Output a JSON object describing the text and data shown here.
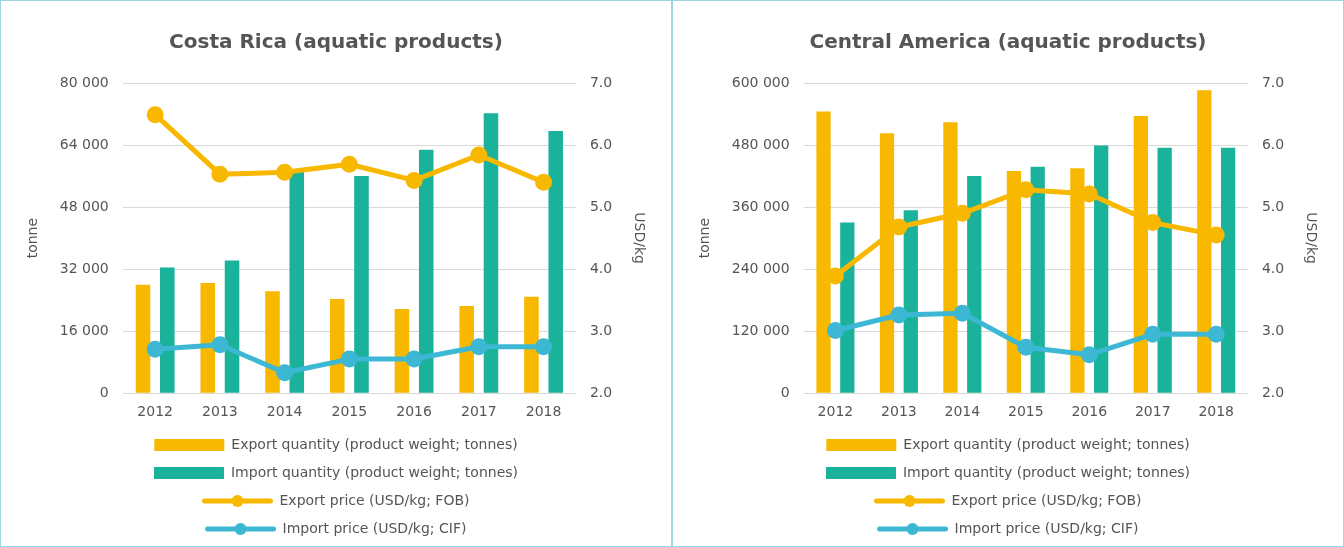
{
  "chart_data": [
    {
      "type": "bar",
      "title": "Costa Rica (aquatic products)",
      "ylabel": "tonne",
      "y2label": "USD/kg",
      "categories": [
        "2012",
        "2013",
        "2014",
        "2015",
        "2016",
        "2017",
        "2018"
      ],
      "series": [
        {
          "name": "Export quantity (product weight; tonnes)",
          "color": "#f9b800",
          "values": [
            28000,
            28400,
            26300,
            24300,
            21700,
            22500,
            24900
          ]
        },
        {
          "name": "Import quantity (product weight; tonnes)",
          "color": "#1ab29b",
          "values": [
            32400,
            34200,
            57200,
            56000,
            62800,
            72200,
            67600
          ]
        },
        {
          "name": "Export price (USD/kg; FOB)",
          "type": "line",
          "axis": "y2",
          "color": "#f9b800",
          "values": [
            6.49,
            5.53,
            5.56,
            5.69,
            5.43,
            5.84,
            5.4
          ]
        },
        {
          "name": "Import price (USD/kg; CIF)",
          "type": "line",
          "axis": "y2",
          "color": "#3db8d4",
          "values": [
            2.71,
            2.78,
            2.33,
            2.55,
            2.55,
            2.75,
            2.75
          ]
        }
      ],
      "ylim": [
        0,
        80000
      ],
      "yticks": [
        0,
        {
          "value": 16000,
          "label": "16 000"
        },
        {
          "value": 32000,
          "label": "32 000"
        },
        {
          "value": 48000,
          "label": "48 000"
        },
        {
          "value": 64000,
          "label": "64 000"
        },
        {
          "value": 80000,
          "label": "80 000"
        }
      ],
      "y2lim": [
        2,
        7
      ],
      "y2ticks": [
        {
          "value": 2,
          "label": "2.0"
        },
        {
          "value": 3,
          "label": "3.0"
        },
        {
          "value": 4,
          "label": "4.0"
        },
        {
          "value": 5,
          "label": "5.0"
        },
        {
          "value": 6,
          "label": "6.0"
        },
        {
          "value": 7,
          "label": "7.0"
        }
      ],
      "grid": "y",
      "legend": "bottom",
      "marker": "circle"
    },
    {
      "type": "bar",
      "title": "Central America (aquatic products)",
      "ylabel": "tonne",
      "y2label": "USD/kg",
      "categories": [
        "2012",
        "2013",
        "2014",
        "2015",
        "2016",
        "2017",
        "2018"
      ],
      "series": [
        {
          "name": "Export quantity (product weight; tonnes)",
          "color": "#f9b800",
          "values": [
            545000,
            503000,
            524000,
            430000,
            435000,
            536000,
            586000
          ]
        },
        {
          "name": "Import quantity (product weight; tonnes)",
          "color": "#1ab29b",
          "values": [
            330000,
            354000,
            420000,
            438000,
            479000,
            475000,
            475000
          ]
        },
        {
          "name": "Export price (USD/kg; FOB)",
          "type": "line",
          "axis": "y2",
          "color": "#f9b800",
          "values": [
            3.89,
            4.68,
            4.9,
            5.28,
            5.21,
            4.75,
            4.55
          ]
        },
        {
          "name": "Import price (USD/kg; CIF)",
          "type": "line",
          "axis": "y2",
          "color": "#3db8d4",
          "values": [
            3.01,
            3.26,
            3.29,
            2.74,
            2.62,
            2.95,
            2.95
          ]
        }
      ],
      "ylim": [
        0,
        600000
      ],
      "yticks": [
        0,
        {
          "value": 120000,
          "label": "120 000"
        },
        {
          "value": 240000,
          "label": "240 000"
        },
        {
          "value": 360000,
          "label": "360 000"
        },
        {
          "value": 480000,
          "label": "480 000"
        },
        {
          "value": 600000,
          "label": "600 000"
        }
      ],
      "y2lim": [
        2,
        7
      ],
      "y2ticks": [
        {
          "value": 2,
          "label": "2.0"
        },
        {
          "value": 3,
          "label": "3.0"
        },
        {
          "value": 4,
          "label": "4.0"
        },
        {
          "value": 5,
          "label": "5.0"
        },
        {
          "value": 6,
          "label": "6.0"
        },
        {
          "value": 7,
          "label": "7.0"
        }
      ],
      "grid": "y",
      "legend": "bottom",
      "marker": "circle"
    }
  ]
}
